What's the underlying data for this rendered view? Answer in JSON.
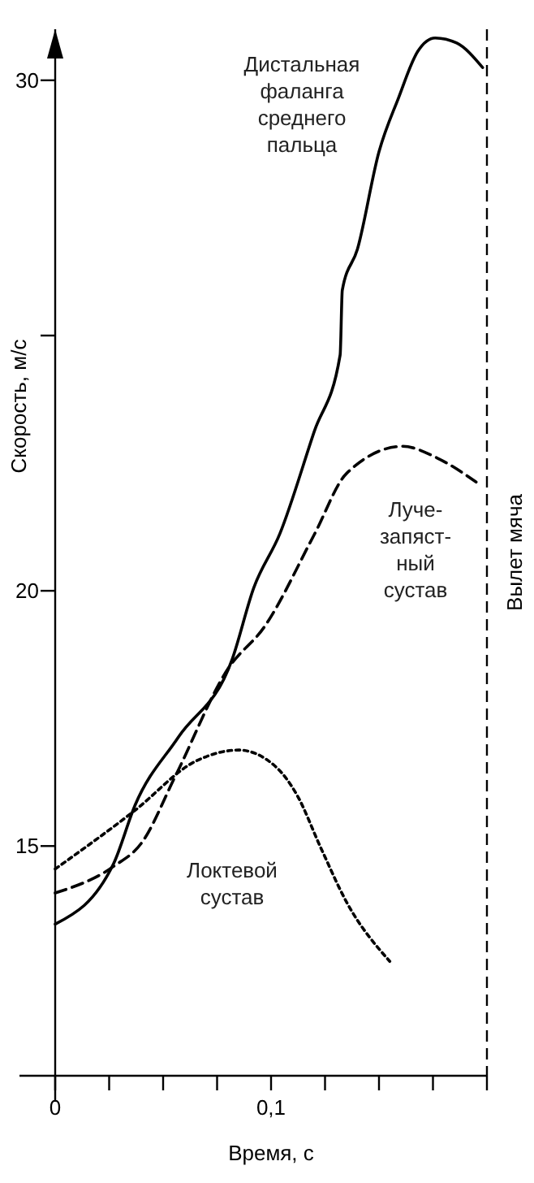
{
  "chart_data": {
    "type": "line",
    "xlabel": "Время, с",
    "ylabel": "Скорость, м/с",
    "xlim": [
      0,
      0.2
    ],
    "ylim": [
      10.5,
      31
    ],
    "xticks": [
      {
        "value": 0,
        "label": "0"
      },
      {
        "value": 0.025,
        "label": null
      },
      {
        "value": 0.05,
        "label": null
      },
      {
        "value": 0.075,
        "label": null
      },
      {
        "value": 0.1,
        "label": "0,1"
      },
      {
        "value": 0.125,
        "label": null
      },
      {
        "value": 0.15,
        "label": null
      },
      {
        "value": 0.175,
        "label": null
      },
      {
        "value": 0.2,
        "label": null
      }
    ],
    "yticks": [
      15,
      20,
      {
        "value": 25,
        "label": null
      },
      30
    ],
    "grid": false,
    "marker": "none",
    "ref_lines": [
      {
        "axis": "x",
        "value": 0.2,
        "label": "Вылет мяча",
        "line_style": "dashed",
        "color": "#000000"
      }
    ],
    "series": [
      {
        "name": "Дистальная\nфаланга\nсреднего\nпальца",
        "color": "#000000",
        "line_style": "solid",
        "x": [
          0,
          0.027,
          0.037,
          0.057,
          0.082,
          0.092,
          0.104,
          0.12,
          0.132,
          0.133,
          0.14,
          0.15,
          0.159,
          0.168,
          0.176,
          0.186,
          0.198
        ],
        "values": [
          13.47,
          14.65,
          15.8,
          17.13,
          18.66,
          20.06,
          21.11,
          23.12,
          24.62,
          25.89,
          26.69,
          28.6,
          29.65,
          30.57,
          30.83,
          30.73,
          30.25
        ]
      },
      {
        "name": "Луче-\nзапяст-\nный\nсустав",
        "color": "#000000",
        "line_style": "dashed",
        "x": [
          0,
          0.027,
          0.04,
          0.056,
          0.08,
          0.097,
          0.12,
          0.135,
          0.161,
          0.177,
          0.195
        ],
        "values": [
          14.08,
          14.6,
          15.06,
          16.4,
          18.47,
          19.3,
          21.1,
          22.3,
          22.83,
          22.6,
          22.13
        ]
      },
      {
        "name": "Локтевой\nсустав",
        "color": "#000000",
        "line_style": "dotted",
        "x": [
          0,
          0.037,
          0.065,
          0.085,
          0.102,
          0.112,
          0.123,
          0.135,
          0.155
        ],
        "values": [
          14.55,
          15.7,
          16.66,
          16.88,
          16.56,
          16,
          14.97,
          13.9,
          12.74
        ]
      }
    ]
  }
}
